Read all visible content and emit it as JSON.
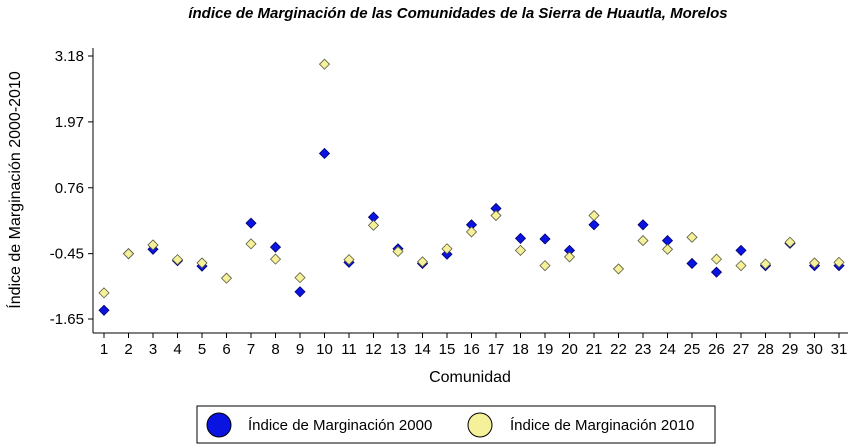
{
  "chart_data": {
    "type": "scatter",
    "title": "índice de Marginación de las Comunidades de la Sierra de Huautla, Morelos",
    "xlabel": "Comunidad",
    "ylabel": "Índice de Marginación 2000-2010",
    "xlim": [
      1,
      31
    ],
    "ylim": [
      -1.65,
      3.18
    ],
    "yticks": [
      "-1.65",
      "-0.45",
      "0.76",
      "1.97",
      "3.18"
    ],
    "xticks": [
      "1",
      "2",
      "3",
      "4",
      "5",
      "6",
      "7",
      "8",
      "9",
      "10",
      "11",
      "12",
      "13",
      "14",
      "15",
      "16",
      "17",
      "18",
      "19",
      "20",
      "21",
      "22",
      "23",
      "24",
      "25",
      "26",
      "27",
      "28",
      "29",
      "30",
      "31"
    ],
    "grid": false,
    "legend": "bottom",
    "series": [
      {
        "name": "Índice de Marginación 2000",
        "color": "#0a14e0",
        "x": [
          1,
          2,
          3,
          4,
          5,
          7,
          8,
          9,
          10,
          11,
          12,
          13,
          14,
          15,
          16,
          17,
          18,
          19,
          20,
          21,
          23,
          24,
          25,
          26,
          27,
          28,
          29,
          30,
          31
        ],
        "y": [
          -1.49,
          -0.45,
          -0.37,
          -0.58,
          -0.68,
          0.11,
          -0.33,
          -1.15,
          1.39,
          -0.61,
          0.22,
          -0.36,
          -0.63,
          -0.46,
          0.08,
          0.38,
          -0.17,
          -0.18,
          -0.39,
          0.08,
          0.08,
          -0.21,
          -0.63,
          -0.79,
          -0.39,
          -0.67,
          -0.26,
          -0.67,
          -0.67
        ]
      },
      {
        "name": "Índice de Marginación 2010",
        "color": "#f5f09a",
        "x": [
          1,
          2,
          3,
          4,
          5,
          6,
          7,
          8,
          9,
          10,
          11,
          12,
          13,
          14,
          15,
          16,
          17,
          18,
          19,
          20,
          21,
          22,
          23,
          24,
          25,
          26,
          27,
          28,
          29,
          30,
          31
        ],
        "y": [
          -1.17,
          -0.45,
          -0.29,
          -0.56,
          -0.62,
          -0.9,
          -0.27,
          -0.55,
          -0.89,
          3.03,
          -0.56,
          0.07,
          -0.41,
          -0.6,
          -0.36,
          -0.05,
          0.25,
          -0.39,
          -0.67,
          -0.51,
          0.25,
          -0.73,
          -0.21,
          -0.37,
          -0.15,
          -0.55,
          -0.67,
          -0.64,
          -0.24,
          -0.62,
          -0.61
        ]
      }
    ]
  }
}
